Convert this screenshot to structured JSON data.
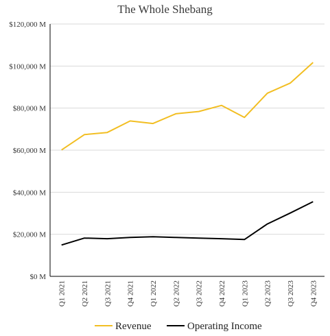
{
  "chart_data": {
    "type": "line",
    "title": "The Whole Shebang",
    "xlabel": "",
    "ylabel": "",
    "categories": [
      "Q1 2021",
      "Q2 2021",
      "Q3 2021",
      "Q4 2021",
      "Q1 2022",
      "Q2 2022",
      "Q3 2022",
      "Q4 2022",
      "Q1 2023",
      "Q2 2023",
      "Q3 2023",
      "Q4 2023"
    ],
    "ylim": [
      0,
      120000
    ],
    "yticks": [
      0,
      20000,
      40000,
      60000,
      80000,
      100000,
      120000
    ],
    "ytick_labels": [
      "$0 M",
      "$20,000 M",
      "$40,000 M",
      "$60,000 M",
      "$80,000 M",
      "$100,000 M",
      "$120,000 M"
    ],
    "grid": true,
    "legend_position": "bottom",
    "series": [
      {
        "name": "Revenue",
        "color": "#F2BE22",
        "values": [
          60100,
          67400,
          68400,
          73900,
          72700,
          77300,
          78400,
          81300,
          75600,
          87100,
          91900,
          101700
        ]
      },
      {
        "name": "Operating Income",
        "color": "#000000",
        "values": [
          14900,
          18200,
          17900,
          18500,
          18800,
          18500,
          18200,
          17900,
          17500,
          24900,
          30100,
          35500
        ]
      }
    ]
  }
}
